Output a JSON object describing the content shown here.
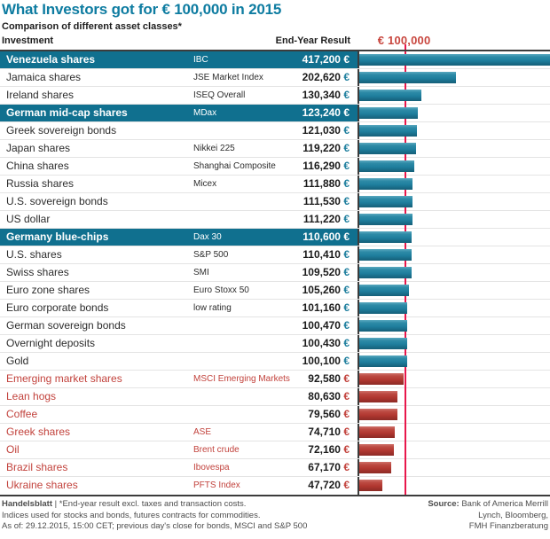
{
  "header": {
    "title": "What Investors got for € 100,000 in 2015",
    "subtitle": "Comparison of different asset classes*",
    "col_investment": "Investment",
    "col_result": "End-Year Result",
    "benchmark_label": "€ 100,000"
  },
  "colors": {
    "title_teal": "#0e7ca1",
    "highlight_row_teal": "#10708f",
    "bar_teal": "#1f7f9e",
    "bar_red": "#b23831",
    "benchmark_line_red": "#e8174b",
    "negative_text_red": "#c2423c",
    "border_dark": "#3c3c3c",
    "gridline": "#e4e4e4"
  },
  "chart_data": {
    "type": "bar",
    "title": "What Investors got for € 100,000 in 2015",
    "subtitle": "Comparison of different asset classes*",
    "xlabel": "End-Year Result (€)",
    "ylabel": "Investment",
    "xlim": [
      0,
      405000
    ],
    "benchmark_value": 100000,
    "currency_suffix": "€",
    "grid": "horizontal-row-separators",
    "legend_position": "none",
    "rows": [
      {
        "label": "Venezuela shares",
        "index": "IBC",
        "value": 417200,
        "display": "417,200",
        "style": "highlight"
      },
      {
        "label": "Jamaica shares",
        "index": "JSE Market Index",
        "value": 202620,
        "display": "202,620",
        "style": "positive"
      },
      {
        "label": "Ireland shares",
        "index": "ISEQ Overall",
        "value": 130340,
        "display": "130,340",
        "style": "positive"
      },
      {
        "label": "German mid-cap shares",
        "index": "MDax",
        "value": 123240,
        "display": "123,240",
        "style": "highlight"
      },
      {
        "label": "Greek sovereign bonds",
        "index": "",
        "value": 121030,
        "display": "121,030",
        "style": "positive"
      },
      {
        "label": "Japan shares",
        "index": "Nikkei 225",
        "value": 119220,
        "display": "119,220",
        "style": "positive"
      },
      {
        "label": "China shares",
        "index": "Shanghai Composite",
        "value": 116290,
        "display": "116,290",
        "style": "positive"
      },
      {
        "label": "Russia shares",
        "index": "Micex",
        "value": 111880,
        "display": "111,880",
        "style": "positive"
      },
      {
        "label": "U.S. sovereign bonds",
        "index": "",
        "value": 111530,
        "display": "111,530",
        "style": "positive"
      },
      {
        "label": "US dollar",
        "index": "",
        "value": 111220,
        "display": "111,220",
        "style": "positive"
      },
      {
        "label": "Germany blue-chips",
        "index": "Dax 30",
        "value": 110600,
        "display": "110,600",
        "style": "highlight"
      },
      {
        "label": "U.S. shares",
        "index": "S&P 500",
        "value": 110410,
        "display": "110,410",
        "style": "positive"
      },
      {
        "label": "Swiss shares",
        "index": "SMI",
        "value": 109520,
        "display": "109,520",
        "style": "positive"
      },
      {
        "label": "Euro zone shares",
        "index": "Euro Stoxx 50",
        "value": 105260,
        "display": "105,260",
        "style": "positive"
      },
      {
        "label": "Euro corporate bonds",
        "index": "low rating",
        "value": 101160,
        "display": "101,160",
        "style": "positive"
      },
      {
        "label": "German sovereign bonds",
        "index": "",
        "value": 100470,
        "display": "100,470",
        "style": "positive"
      },
      {
        "label": "Overnight deposits",
        "index": "",
        "value": 100430,
        "display": "100,430",
        "style": "positive"
      },
      {
        "label": "Gold",
        "index": "",
        "value": 100100,
        "display": "100,100",
        "style": "positive"
      },
      {
        "label": "Emerging market shares",
        "index": "MSCI Emerging Markets",
        "value": 92580,
        "display": "92,580",
        "style": "negative"
      },
      {
        "label": "Lean hogs",
        "index": "",
        "value": 80630,
        "display": "80,630",
        "style": "negative"
      },
      {
        "label": "Coffee",
        "index": "",
        "value": 79560,
        "display": "79,560",
        "style": "negative"
      },
      {
        "label": "Greek shares",
        "index": "ASE",
        "value": 74710,
        "display": "74,710",
        "style": "negative"
      },
      {
        "label": "Oil",
        "index": "Brent crude",
        "value": 72160,
        "display": "72,160",
        "style": "negative"
      },
      {
        "label": "Brazil shares",
        "index": "Ibovespa",
        "value": 67170,
        "display": "67,170",
        "style": "negative"
      },
      {
        "label": "Ukraine shares",
        "index": "PFTS Index",
        "value": 47720,
        "display": "47,720",
        "style": "negative"
      }
    ]
  },
  "footer": {
    "brand": "Handelsblatt",
    "sep": " | ",
    "note1": "*End-year result excl. taxes and transaction costs.",
    "note2": "Indices used for stocks and bonds, futures contracts for commodities.",
    "note3": "As of: 29.12.2015, 15:00 CET; previous day's close for bonds, MSCI and S&P 500",
    "source_label": "Source:",
    "source_line1": " Bank of America Merrill",
    "source_line2": "Lynch, Bloomberg,",
    "source_line3": "FMH Finanzberatung"
  }
}
